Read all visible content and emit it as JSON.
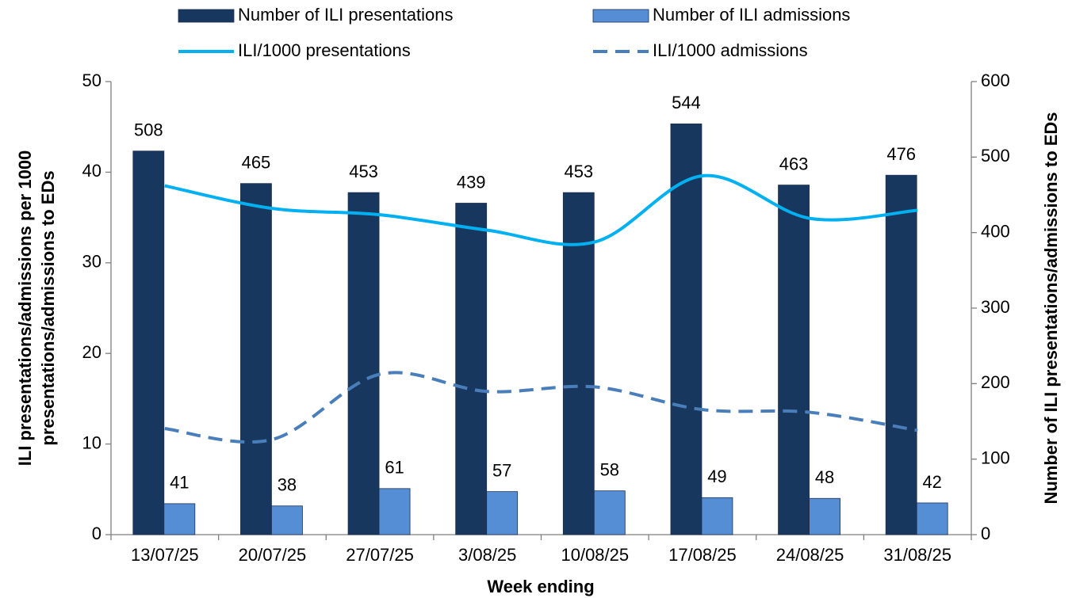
{
  "chart_data": {
    "type": "bar-line",
    "categories": [
      "13/07/25",
      "20/07/25",
      "27/07/25",
      "3/08/25",
      "10/08/25",
      "17/08/25",
      "24/08/25",
      "31/08/25"
    ],
    "series": [
      {
        "name": "Number of ILI presentations",
        "type": "bar",
        "axis": "y2",
        "color": "#17375e",
        "values": [
          508,
          465,
          453,
          439,
          453,
          544,
          463,
          476
        ]
      },
      {
        "name": "Number of ILI admissions",
        "type": "bar",
        "axis": "y2",
        "color": "#558ed5",
        "values": [
          41,
          38,
          61,
          57,
          58,
          49,
          48,
          42
        ]
      },
      {
        "name": "ILI/1000 presentations",
        "type": "line",
        "color": "#00b0f0",
        "dashed": false,
        "values": [
          38.5,
          36.0,
          35.3,
          33.6,
          32.3,
          39.6,
          34.9,
          35.8
        ]
      },
      {
        "name": "ILI/1000 admissions",
        "type": "line",
        "color": "#4a7ebb",
        "dashed": true,
        "values": [
          11.7,
          10.5,
          17.7,
          15.8,
          16.3,
          13.8,
          13.5,
          11.5
        ]
      }
    ],
    "ylim": [
      0,
      50
    ],
    "yticks": [
      0,
      10,
      20,
      30,
      40,
      50
    ],
    "y2lim": [
      0,
      600
    ],
    "y2ticks": [
      0,
      100,
      200,
      300,
      400,
      500,
      600
    ],
    "x_label": "Week ending",
    "y_label": [
      "ILI presentations/admissions per 1000",
      "presentations/admissions to EDs"
    ],
    "y2_label": "Number of ILI presentations/admissions to EDs",
    "grid": false
  }
}
